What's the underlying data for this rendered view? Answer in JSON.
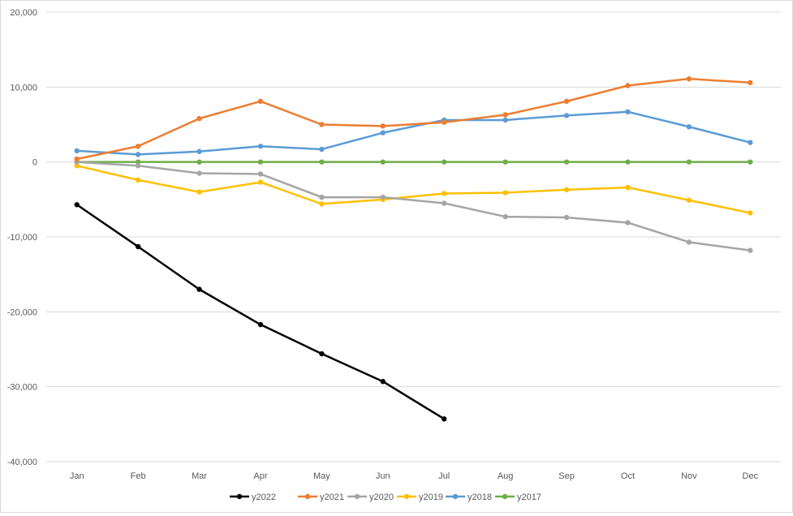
{
  "chart_data": {
    "type": "line",
    "title": "",
    "xlabel": "",
    "ylabel": "",
    "categories": [
      "Jan",
      "Feb",
      "Mar",
      "Apr",
      "May",
      "Jun",
      "Jul",
      "Aug",
      "Sep",
      "Oct",
      "Nov",
      "Dec"
    ],
    "ylim": [
      -40000,
      20000
    ],
    "yticks": [
      20000,
      10000,
      0,
      -10000,
      -20000,
      -30000,
      -40000
    ],
    "ytick_labels": [
      "20,000",
      "10,000",
      "0",
      "-10,000",
      "-20,000",
      "-30,000",
      "-40,000"
    ],
    "grid": "horizontal",
    "legend_position": "bottom",
    "series": [
      {
        "name": "y2022",
        "color": "#000000",
        "values": [
          -5700,
          -11300,
          -17000,
          -21700,
          -25600,
          -29300,
          -34300,
          null,
          null,
          null,
          null,
          null
        ]
      },
      {
        "name": "y2021",
        "color": "#ed7d31",
        "values": [
          400,
          2100,
          5800,
          8100,
          5000,
          4800,
          5300,
          6300,
          8100,
          10200,
          11100,
          10600
        ]
      },
      {
        "name": "y2020",
        "color": "#a5a5a5",
        "values": [
          0,
          -500,
          -1500,
          -1600,
          -4700,
          -4700,
          -5500,
          -7300,
          -7400,
          -8100,
          -10700,
          -11800
        ]
      },
      {
        "name": "y2019",
        "color": "#ffc000",
        "values": [
          -500,
          -2400,
          -4000,
          -2700,
          -5600,
          -5000,
          -4200,
          -4100,
          -3700,
          -3400,
          -5100,
          -6800
        ]
      },
      {
        "name": "y2018",
        "color": "#5b9bd5",
        "values": [
          1500,
          1000,
          1400,
          2100,
          1700,
          3900,
          5600,
          5600,
          6200,
          6700,
          4700,
          2600
        ]
      },
      {
        "name": "y2017",
        "color": "#70ad47",
        "values": [
          0,
          0,
          0,
          0,
          0,
          0,
          0,
          0,
          0,
          0,
          0,
          0
        ]
      }
    ]
  }
}
